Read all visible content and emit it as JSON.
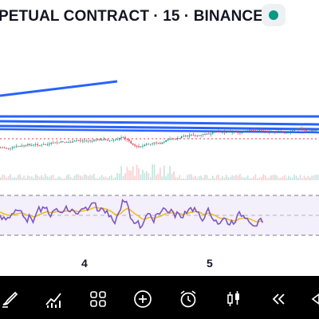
{
  "header": {
    "title": "PETUAL CONTRACT · 15 · BINANCE",
    "status_color": "#089981"
  },
  "time_axis": {
    "labels": [
      "4",
      "5"
    ]
  },
  "colors": {
    "trendline": "#2962ff",
    "rsi_line": "#7e57c2",
    "rsi_ma": "#f0b90b",
    "up_candle": "#089981",
    "down_candle": "#f23645",
    "rsi_band": "#f3effb"
  },
  "toolbar": {
    "icons": [
      "brush-icon",
      "chart-icon",
      "grid-icon",
      "plus-circle-icon",
      "alarm-icon",
      "candles-icon",
      "rewind-icon",
      "more-icon"
    ]
  }
}
